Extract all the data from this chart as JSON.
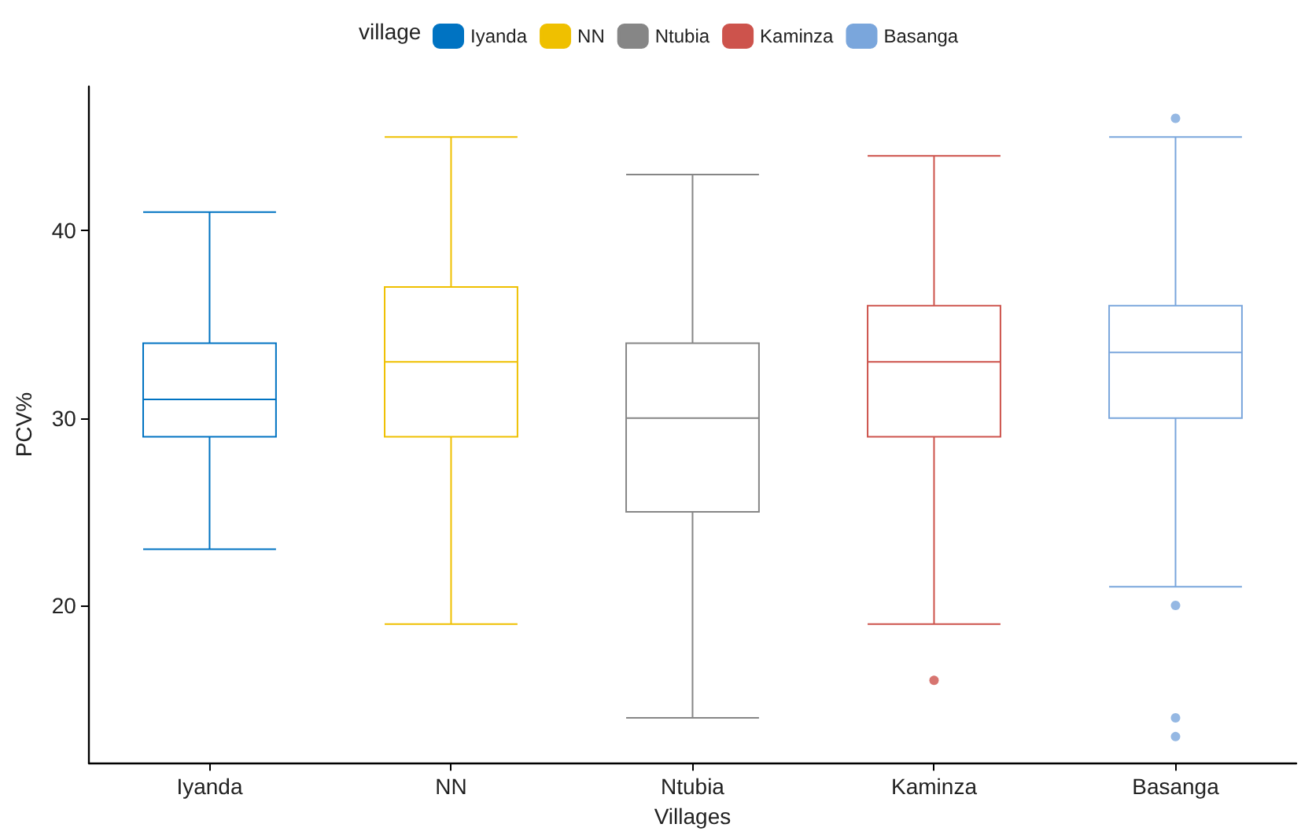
{
  "chart_data": {
    "type": "box",
    "xlabel": "Villages",
    "ylabel": "PCV%",
    "legend_title": "village",
    "legend": "top",
    "grid": false,
    "marker": "circle",
    "categories": [
      "Iyanda",
      "NN",
      "Ntubia",
      "Kaminza",
      "Basanga"
    ],
    "ylim": [
      11.6,
      47.7
    ],
    "yticks": [
      20,
      30,
      40
    ],
    "series": [
      {
        "name": "Iyanda",
        "color": "#0073c2",
        "x": [
          "Iyanda"
        ],
        "boxes": [
          {
            "low": 23,
            "q1": 29,
            "median": 31,
            "q3": 34,
            "high": 41
          }
        ]
      },
      {
        "name": "NN",
        "color": "#efc000",
        "x": [
          "NN"
        ],
        "boxes": [
          {
            "low": 19,
            "q1": 29,
            "median": 33,
            "q3": 37,
            "high": 45
          }
        ]
      },
      {
        "name": "Ntubia",
        "color": "#868686",
        "x": [
          "Ntubia"
        ],
        "boxes": [
          {
            "low": 14,
            "q1": 25,
            "median": 30,
            "q3": 34,
            "high": 43
          }
        ]
      },
      {
        "name": "Kaminza",
        "color": "#cd534c",
        "x": [
          "Kaminza"
        ],
        "boxes": [
          {
            "low": 19,
            "q1": 29,
            "median": 33,
            "q3": 36,
            "high": 44,
            "outliers": [
              16
            ]
          }
        ]
      },
      {
        "name": "Basanga",
        "color": "#7aa6dc",
        "x": [
          "Basanga"
        ],
        "boxes": [
          {
            "low": 21,
            "q1": 30,
            "median": 33.5,
            "q3": 36,
            "high": 45,
            "outliers": [
              46,
              20,
              14,
              13
            ]
          }
        ]
      }
    ]
  }
}
